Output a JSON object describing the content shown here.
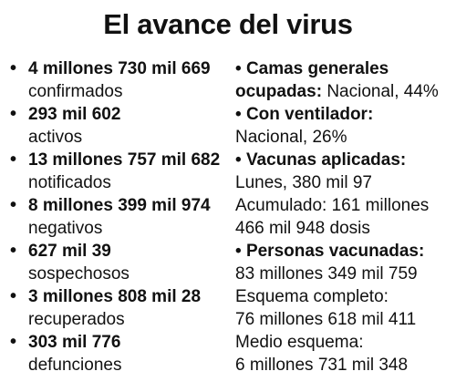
{
  "title": "El avance del virus",
  "bullet": "•",
  "left_items": [
    {
      "bold": "4 millones 730 mil 669",
      "normal": "confirmados"
    },
    {
      "bold": "293 mil 602",
      "normal": "activos"
    },
    {
      "bold": "13 millones 757 mil 682",
      "normal": "notificados"
    },
    {
      "bold": "8 millones 399 mil 974",
      "normal": "negativos"
    },
    {
      "bold": "627 mil 39",
      "normal": "sospechosos"
    },
    {
      "bold": "3 millones 808 mil 28",
      "normal": "recuperados"
    },
    {
      "bold": "303 mil 776",
      "normal": "defunciones"
    }
  ],
  "right": {
    "camas": {
      "heading_line1": "Camas generales",
      "heading_line2": "ocupadas:",
      "value": "Nacional, 44%"
    },
    "ventilador": {
      "heading": "Con ventilador:",
      "value": "Nacional, 26%"
    },
    "vacunas": {
      "heading": "Vacunas aplicadas:",
      "lunes": "Lunes, 380 mil 97",
      "acumulado_1": "Acumulado: 161 millones",
      "acumulado_2": "466 mil 948 dosis"
    },
    "personas": {
      "heading": "Personas vacunadas:",
      "total": "83 millones 349 mil 759",
      "completo_label": "Esquema completo:",
      "completo_value": "76 millones 618 mil 411",
      "medio_label": "Medio esquema:",
      "medio_value": "6 millones 731 mil 348"
    }
  }
}
